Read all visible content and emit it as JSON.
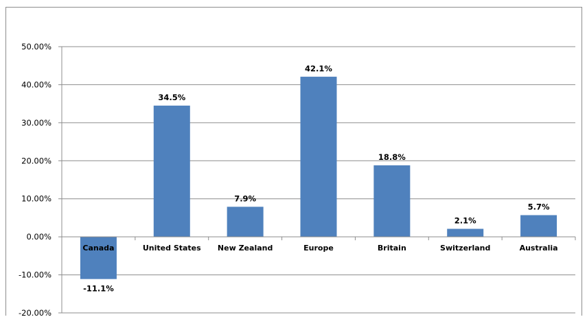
{
  "chart_data": {
    "type": "bar",
    "categories": [
      "Canada",
      "United States",
      "New Zealand",
      "Europe",
      "Britain",
      "Switzerland",
      "Australia"
    ],
    "values": [
      -11.1,
      34.5,
      7.9,
      42.1,
      18.8,
      2.1,
      5.7
    ],
    "data_labels": [
      "-11.1%",
      "34.5%",
      "7.9%",
      "42.1%",
      "18.8%",
      "2.1%",
      "5.7%"
    ],
    "title": "",
    "xlabel": "",
    "ylabel": "",
    "ylim": [
      -20,
      50
    ],
    "yticks": [
      50,
      40,
      30,
      20,
      10,
      0,
      -10,
      -20
    ],
    "ytick_labels": [
      "50.00%",
      "40.00%",
      "30.00%",
      "20.00%",
      "10.00%",
      "0.00%",
      "-10.00%",
      "-20.00%"
    ],
    "grid": true,
    "legend": "none",
    "colors": {
      "bar": "#4f81bd",
      "grid": "#8c8c8c",
      "axis": "#8c8c8c"
    }
  }
}
